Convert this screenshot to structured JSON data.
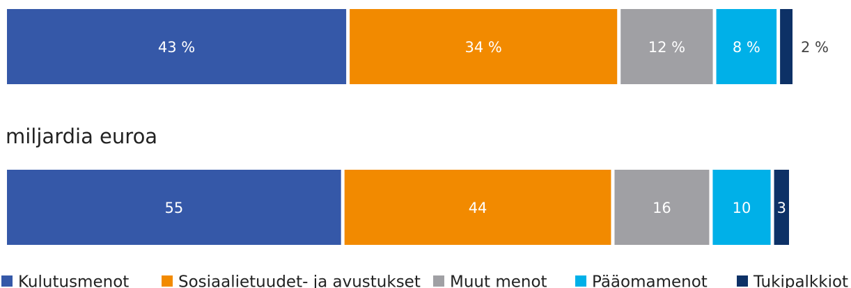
{
  "chart_data": [
    {
      "type": "stacked_barh",
      "series": [
        {
          "name": "Kulutusmenot",
          "color": "#3558a8",
          "values": [
            43
          ],
          "value_labels": [
            "43 %"
          ]
        },
        {
          "name": "Sosiaalietuudet- ja avustukset",
          "color": "#f28a00",
          "values": [
            34
          ],
          "value_labels": [
            "34 %"
          ]
        },
        {
          "name": "Muut menot",
          "color": "#a0a0a4",
          "values": [
            12
          ],
          "value_labels": [
            "12 %"
          ]
        },
        {
          "name": "Pääomamenot",
          "color": "#00b0e8",
          "values": [
            8
          ],
          "value_labels": [
            "8 %"
          ]
        },
        {
          "name": "Tukipalkkiot",
          "color": "#0d3166",
          "values": [
            2
          ],
          "value_labels": [
            "2 %"
          ]
        }
      ]
    },
    {
      "type": "stacked_barh",
      "title": "miljardia euroa",
      "series": [
        {
          "color": "#3558a8",
          "values": [
            55
          ]
        },
        {
          "color": "#f28a00",
          "values": [
            44
          ]
        },
        {
          "color": "#a0a0a4",
          "values": [
            16
          ]
        },
        {
          "color": "#00b0e8",
          "values": [
            10
          ]
        },
        {
          "color": "#0d3166",
          "values": [
            3
          ]
        }
      ]
    }
  ]
}
